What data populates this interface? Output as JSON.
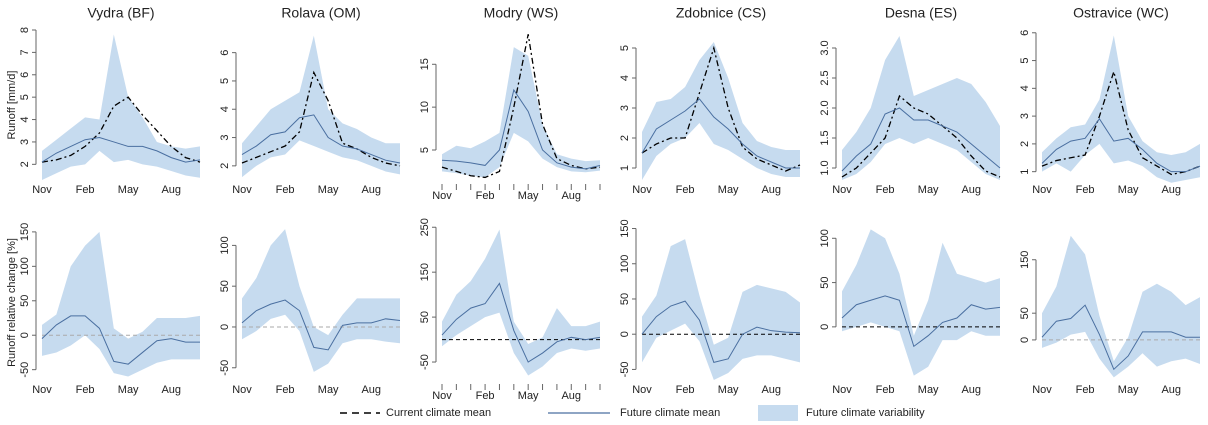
{
  "chart_data": [
    {
      "type": "line",
      "title": "Vydra (BF)",
      "ylabel": "Runoff [mm/d]",
      "categories": [
        "Nov",
        null,
        null,
        "Feb",
        null,
        null,
        "May",
        null,
        null,
        "Aug",
        null,
        null
      ],
      "ylim": [
        1.3,
        8
      ],
      "yticks": [
        2,
        3,
        4,
        5,
        6,
        7,
        8
      ],
      "band": {
        "name": "Future climate variability",
        "color": "#c6dbef",
        "upper": [
          2.6,
          3.1,
          3.6,
          4.1,
          4.0,
          7.8,
          5.0,
          4.1,
          3.0,
          2.8,
          2.7,
          2.8
        ],
        "lower": [
          1.3,
          1.6,
          1.9,
          2.0,
          2.6,
          2.1,
          2.2,
          2.0,
          1.9,
          1.7,
          1.5,
          1.4
        ]
      },
      "series": [
        {
          "name": "Current climate mean",
          "color": "#000000",
          "dash": true,
          "values": [
            2.1,
            2.2,
            2.4,
            2.8,
            3.4,
            4.6,
            5.0,
            4.2,
            3.5,
            2.8,
            2.3,
            2.1
          ]
        },
        {
          "name": "Future climate mean",
          "color": "#4a6fa0",
          "dash": false,
          "values": [
            2.1,
            2.5,
            2.8,
            3.1,
            3.2,
            3.0,
            2.8,
            2.8,
            2.6,
            2.3,
            2.1,
            2.2
          ]
        }
      ]
    },
    {
      "type": "line",
      "title": "Rolava (OM)",
      "categories": [
        "Nov",
        null,
        null,
        "Feb",
        null,
        null,
        "May",
        null,
        null,
        "Aug",
        null,
        null
      ],
      "ylim": [
        1.5,
        6.8
      ],
      "yticks": [
        2,
        3,
        4,
        5,
        6
      ],
      "band": {
        "name": "Future climate variability",
        "color": "#c6dbef",
        "upper": [
          2.8,
          3.4,
          4.0,
          4.3,
          4.6,
          6.6,
          4.0,
          3.5,
          3.3,
          3.0,
          2.8,
          2.8
        ],
        "lower": [
          1.6,
          2.0,
          2.3,
          2.4,
          2.9,
          2.7,
          2.5,
          2.3,
          2.2,
          2.0,
          1.8,
          1.7
        ]
      },
      "series": [
        {
          "name": "Current climate mean",
          "color": "#000000",
          "dash": true,
          "values": [
            2.1,
            2.3,
            2.5,
            2.7,
            3.2,
            5.3,
            4.3,
            2.8,
            2.6,
            2.3,
            2.1,
            2.0
          ]
        },
        {
          "name": "Future climate mean",
          "color": "#4a6fa0",
          "dash": false,
          "values": [
            2.4,
            2.7,
            3.1,
            3.2,
            3.7,
            3.8,
            3.0,
            2.7,
            2.6,
            2.4,
            2.2,
            2.1
          ]
        }
      ]
    },
    {
      "type": "line",
      "title": "Modry (WS)",
      "categories": [
        "Nov",
        null,
        null,
        "Feb",
        null,
        null,
        "May",
        null,
        null,
        "Aug",
        null,
        null
      ],
      "xtick_marks": true,
      "ylim": [
        1.5,
        19
      ],
      "yticks": [
        5,
        10,
        15
      ],
      "band": {
        "name": "Future climate variability",
        "color": "#c6dbef",
        "upper": [
          4.5,
          5.5,
          5.2,
          6,
          7,
          17,
          16,
          8,
          4.5,
          4,
          3.7,
          3.8
        ],
        "lower": [
          2.5,
          2.3,
          2,
          1.8,
          3,
          7,
          6,
          4,
          3,
          2.5,
          2.4,
          2.6
        ]
      },
      "series": [
        {
          "name": "Current climate mean",
          "color": "#000000",
          "dash": true,
          "values": [
            3,
            2.5,
            2,
            1.8,
            2.5,
            10,
            18.5,
            8,
            4,
            3.2,
            2.8,
            3
          ]
        },
        {
          "name": "Future climate mean",
          "color": "#4a6fa0",
          "dash": false,
          "values": [
            3.8,
            3.7,
            3.5,
            3.2,
            5,
            12,
            9.5,
            5,
            3.5,
            3,
            2.8,
            3.2
          ]
        }
      ]
    },
    {
      "type": "line",
      "title": "Zdobnice (CS)",
      "categories": [
        "Nov",
        null,
        null,
        "Feb",
        null,
        null,
        "May",
        null,
        null,
        "Aug",
        null,
        null
      ],
      "ylim": [
        0.6,
        5.6
      ],
      "yticks": [
        1,
        2,
        3,
        4,
        5
      ],
      "band": {
        "name": "Future climate variability",
        "color": "#c6dbef",
        "upper": [
          2.2,
          3.2,
          3.3,
          3.7,
          4.6,
          5.2,
          4.0,
          2.5,
          1.9,
          1.7,
          1.6,
          1.6
        ],
        "lower": [
          0.6,
          1.4,
          1.8,
          2.0,
          2.5,
          1.8,
          1.6,
          1.3,
          1.0,
          0.8,
          0.7,
          0.7
        ]
      },
      "series": [
        {
          "name": "Current climate mean",
          "color": "#000000",
          "dash": true,
          "values": [
            1.5,
            1.8,
            2.0,
            2.0,
            3.5,
            5.0,
            3.0,
            1.7,
            1.3,
            1.1,
            0.9,
            1.1
          ]
        },
        {
          "name": "Future climate mean",
          "color": "#4a6fa0",
          "dash": false,
          "values": [
            1.5,
            2.3,
            2.6,
            2.9,
            3.3,
            2.7,
            2.3,
            1.8,
            1.4,
            1.2,
            1.0,
            1.0
          ]
        }
      ]
    },
    {
      "type": "line",
      "title": "Desna (ES)",
      "categories": [
        "Nov",
        null,
        null,
        "Feb",
        null,
        null,
        "May",
        null,
        null,
        "Aug",
        null,
        null
      ],
      "ylim": [
        0.8,
        3.3
      ],
      "yticks": [
        {
          "value": 1,
          "label": "1.0"
        },
        1.5,
        {
          "value": 2,
          "label": "2.0"
        },
        2.5,
        {
          "value": 3,
          "label": "3.0"
        }
      ],
      "band": {
        "name": "Future climate variability",
        "color": "#c6dbef",
        "upper": [
          1.3,
          1.6,
          2.0,
          2.8,
          3.2,
          2.2,
          2.3,
          2.4,
          2.5,
          2.4,
          2.1,
          1.7
        ],
        "lower": [
          0.8,
          0.9,
          1.1,
          1.4,
          1.5,
          1.4,
          1.5,
          1.4,
          1.3,
          1.1,
          0.9,
          0.8
        ]
      },
      "series": [
        {
          "name": "Current climate mean",
          "color": "#000000",
          "dash": true,
          "values": [
            0.85,
            1.0,
            1.25,
            1.5,
            2.2,
            2.0,
            1.9,
            1.7,
            1.5,
            1.2,
            0.95,
            0.85
          ]
        },
        {
          "name": "Future climate mean",
          "color": "#4a6fa0",
          "dash": false,
          "values": [
            0.95,
            1.2,
            1.4,
            1.9,
            2.0,
            1.8,
            1.8,
            1.7,
            1.6,
            1.4,
            1.2,
            1.0
          ]
        }
      ]
    },
    {
      "type": "line",
      "title": "Ostravice (WC)",
      "categories": [
        "Nov",
        null,
        null,
        "Feb",
        null,
        null,
        "May",
        null,
        null,
        "Aug",
        null,
        null
      ],
      "ylim": [
        0.7,
        6.1
      ],
      "yticks": [
        1,
        2,
        3,
        4,
        5,
        6
      ],
      "band": {
        "name": "Future climate variability",
        "color": "#c6dbef",
        "upper": [
          1.7,
          2.2,
          2.6,
          2.7,
          3.6,
          5.9,
          3.0,
          2.1,
          1.7,
          1.6,
          1.7,
          2.0
        ],
        "lower": [
          1.0,
          1.3,
          1.0,
          1.6,
          2.0,
          1.3,
          1.4,
          1.2,
          0.8,
          0.6,
          0.7,
          0.8
        ]
      },
      "series": [
        {
          "name": "Current climate mean",
          "color": "#000000",
          "dash": true,
          "values": [
            1.2,
            1.4,
            1.5,
            1.6,
            3.0,
            4.6,
            2.5,
            1.5,
            1.2,
            0.9,
            1.0,
            1.2
          ]
        },
        {
          "name": "Future climate mean",
          "color": "#4a6fa0",
          "dash": false,
          "values": [
            1.3,
            1.8,
            2.1,
            2.2,
            2.9,
            2.1,
            2.2,
            1.8,
            1.3,
            1.0,
            1.0,
            1.2
          ]
        }
      ]
    },
    {
      "type": "line",
      "ylabel": "Runoff relative change [%]",
      "categories": [
        "Nov",
        null,
        null,
        "Feb",
        null,
        null,
        "May",
        null,
        null,
        "Aug",
        null,
        null
      ],
      "ylim": [
        -65,
        160
      ],
      "yticks": [
        -50,
        0,
        50,
        100,
        150
      ],
      "hline": 0,
      "hline_color": "#aaaaaa",
      "band": {
        "name": "Future climate variability",
        "color": "#c6dbef",
        "upper": [
          15,
          30,
          100,
          130,
          150,
          10,
          -5,
          5,
          25,
          25,
          25,
          28
        ],
        "lower": [
          -30,
          -25,
          -15,
          0,
          -20,
          -55,
          -60,
          -50,
          -40,
          -35,
          -35,
          -35
        ]
      },
      "series": [
        {
          "name": "Future climate mean",
          "color": "#4a6fa0",
          "dash": false,
          "values": [
            -5,
            15,
            28,
            28,
            10,
            -38,
            -42,
            -25,
            -8,
            -5,
            -10,
            -10
          ]
        }
      ]
    },
    {
      "type": "line",
      "categories": [
        "Nov",
        null,
        null,
        "Feb",
        null,
        null,
        "May",
        null,
        null,
        "Aug",
        null,
        null
      ],
      "ylim": [
        -65,
        125
      ],
      "yticks": [
        -50,
        0,
        50,
        100
      ],
      "hline": 0,
      "hline_color": "#aaaaaa",
      "band": {
        "name": "Future climate variability",
        "color": "#c6dbef",
        "upper": [
          35,
          60,
          100,
          120,
          50,
          0,
          -10,
          15,
          35,
          35,
          35,
          35
        ],
        "lower": [
          -15,
          -5,
          10,
          15,
          -5,
          -55,
          -45,
          -20,
          -15,
          -15,
          -18,
          -20
        ]
      },
      "series": [
        {
          "name": "Future climate mean",
          "color": "#4a6fa0",
          "dash": false,
          "values": [
            5,
            20,
            28,
            33,
            20,
            -25,
            -28,
            2,
            5,
            5,
            10,
            8
          ]
        }
      ]
    },
    {
      "type": "line",
      "categories": [
        "Nov",
        null,
        null,
        "Feb",
        null,
        null,
        "May",
        null,
        null,
        "Aug",
        null,
        null
      ],
      "xtick_marks": true,
      "ylim": [
        -90,
        255
      ],
      "yticks": [
        -50,
        50,
        150,
        250
      ],
      "hline": 0,
      "hline_color": "#000000",
      "band": {
        "name": "Future climate variability",
        "color": "#c6dbef",
        "upper": [
          40,
          100,
          130,
          180,
          245,
          40,
          -10,
          5,
          70,
          30,
          30,
          40
        ],
        "lower": [
          -15,
          10,
          30,
          50,
          60,
          -30,
          -80,
          -60,
          -30,
          -20,
          -25,
          -20
        ]
      },
      "series": [
        {
          "name": "Future climate mean",
          "color": "#4a6fa0",
          "dash": false,
          "values": [
            10,
            45,
            70,
            80,
            125,
            20,
            -50,
            -30,
            -5,
            5,
            0,
            5
          ]
        }
      ]
    },
    {
      "type": "line",
      "categories": [
        "Nov",
        null,
        null,
        "Feb",
        null,
        null,
        "May",
        null,
        null,
        "Aug",
        null,
        null
      ],
      "ylim": [
        -65,
        155
      ],
      "yticks": [
        -50,
        0,
        50,
        100,
        150
      ],
      "hline": 0,
      "hline_color": "#000000",
      "band": {
        "name": "Future climate variability",
        "color": "#c6dbef",
        "upper": [
          25,
          55,
          125,
          135,
          55,
          -15,
          -5,
          60,
          70,
          65,
          60,
          45
        ],
        "lower": [
          -40,
          -5,
          5,
          15,
          -10,
          -65,
          -55,
          -35,
          -30,
          -30,
          -35,
          -40
        ]
      },
      "series": [
        {
          "name": "Future climate mean",
          "color": "#4a6fa0",
          "dash": false,
          "values": [
            0,
            25,
            40,
            47,
            20,
            -40,
            -35,
            0,
            10,
            5,
            3,
            2
          ]
        }
      ]
    },
    {
      "type": "line",
      "categories": [
        "Nov",
        null,
        null,
        "Feb",
        null,
        null,
        "May",
        null,
        null,
        "Aug",
        null,
        null
      ],
      "ylim": [
        -60,
        115
      ],
      "yticks": [
        0,
        50,
        100
      ],
      "hline": 0,
      "hline_color": "#000000",
      "band": {
        "name": "Future climate variability",
        "color": "#c6dbef",
        "upper": [
          40,
          70,
          110,
          100,
          60,
          -10,
          30,
          95,
          60,
          55,
          50,
          55
        ],
        "lower": [
          -5,
          0,
          5,
          0,
          -5,
          -55,
          -45,
          -15,
          -15,
          -5,
          -10,
          -10
        ]
      },
      "series": [
        {
          "name": "Future climate mean",
          "color": "#4a6fa0",
          "dash": false,
          "values": [
            10,
            25,
            30,
            35,
            30,
            -22,
            -10,
            5,
            10,
            25,
            20,
            22
          ]
        }
      ]
    },
    {
      "type": "line",
      "categories": [
        "Nov",
        null,
        null,
        "Feb",
        null,
        null,
        "May",
        null,
        null,
        "Aug",
        null,
        null
      ],
      "ylim": [
        -75,
        215
      ],
      "yticks": [
        0,
        50,
        150
      ],
      "hline": 0,
      "hline_color": "#aaaaaa",
      "band": {
        "name": "Future climate variability",
        "color": "#c6dbef",
        "upper": [
          50,
          100,
          195,
          160,
          45,
          -40,
          5,
          90,
          105,
          90,
          65,
          80
        ],
        "lower": [
          -15,
          -5,
          10,
          15,
          -35,
          -70,
          -50,
          -25,
          -50,
          -40,
          -35,
          -45
        ]
      },
      "series": [
        {
          "name": "Future climate mean",
          "color": "#4a6fa0",
          "dash": false,
          "values": [
            5,
            35,
            40,
            65,
            10,
            -55,
            -30,
            15,
            15,
            15,
            5,
            5
          ]
        }
      ]
    }
  ]
}
